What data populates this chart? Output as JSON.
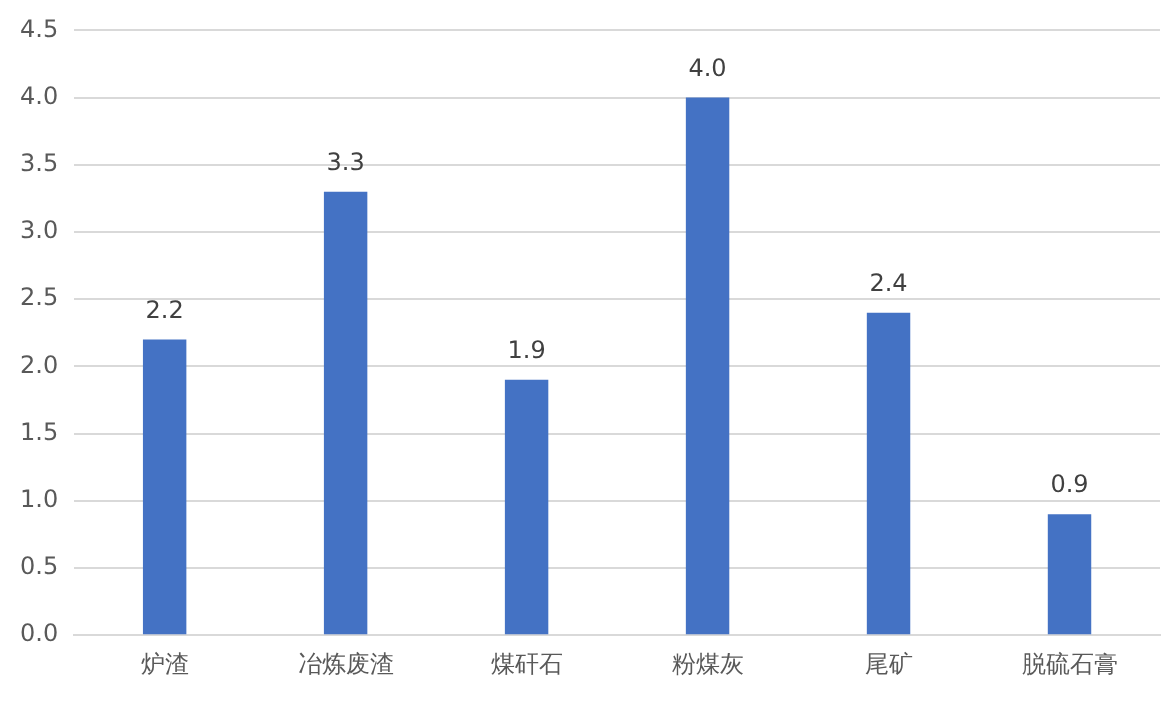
{
  "chart_data": {
    "type": "bar",
    "categories": [
      "炉渣",
      "冶炼废渣",
      "煤矸石",
      "粉煤灰",
      "尾矿",
      "脱硫石膏"
    ],
    "values": [
      2.2,
      3.3,
      1.9,
      4.0,
      2.4,
      0.9
    ],
    "value_labels": [
      "2.2",
      "3.3",
      "1.9",
      "4.0",
      "2.4",
      "0.9"
    ],
    "color": "#4472c4",
    "ylim": [
      0,
      4.5
    ],
    "yticks": [
      {
        "value": 0,
        "label": "0.0"
      },
      {
        "value": 0.5,
        "label": "0.5"
      },
      {
        "value": 1,
        "label": "1.0"
      },
      {
        "value": 1.5,
        "label": "1.5"
      },
      {
        "value": 2,
        "label": "2.0"
      },
      {
        "value": 2.5,
        "label": "2.5"
      },
      {
        "value": 3,
        "label": "3.0"
      },
      {
        "value": 3.5,
        "label": "3.5"
      },
      {
        "value": 4,
        "label": "4.0"
      },
      {
        "value": 4.5,
        "label": "4.5"
      }
    ],
    "grid": "y"
  }
}
